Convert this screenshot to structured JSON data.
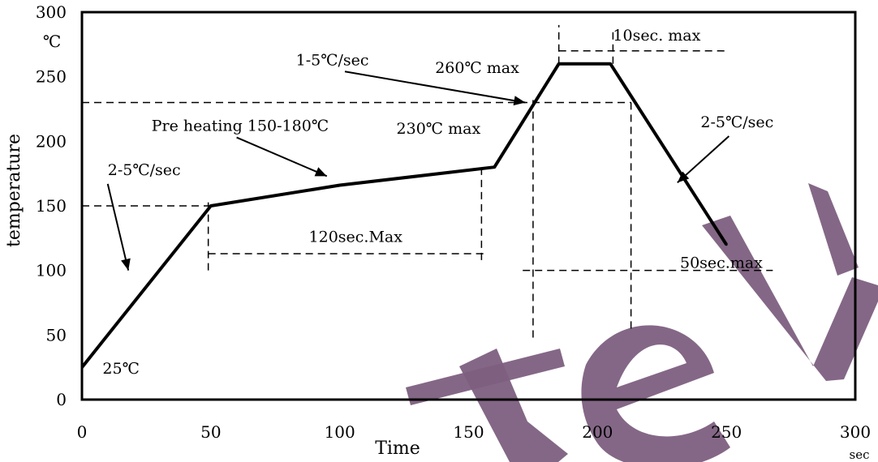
{
  "chart_data": {
    "type": "line",
    "xlabel": "Time",
    "ylabel": "temperature",
    "x_unit": "sec",
    "y_unit": "℃",
    "xlim": [
      0,
      300
    ],
    "ylim": [
      0,
      300
    ],
    "x_ticks": [
      "0",
      "50",
      "100",
      "150",
      "200",
      "250",
      "300"
    ],
    "y_ticks": [
      "0",
      "50",
      "100",
      "150",
      "200",
      "250",
      "300"
    ],
    "grid": false,
    "series": [
      {
        "x": [
          0,
          50,
          100,
          160,
          185,
          205,
          250
        ],
        "y": [
          25,
          150,
          166,
          180,
          260,
          260,
          120
        ]
      }
    ],
    "reference_lines": [
      {
        "orientation": "h",
        "y": 150,
        "x_from": 0,
        "x_to": 50
      },
      {
        "orientation": "h",
        "y": 230,
        "x_from": 0,
        "x_to": 213
      },
      {
        "orientation": "h",
        "y": 113,
        "x_from": 49,
        "x_to": 157
      },
      {
        "orientation": "h",
        "y": 270,
        "x_from": 185,
        "x_to": 250
      },
      {
        "orientation": "h",
        "y": 100,
        "x_from": 171,
        "x_to": 268
      },
      {
        "orientation": "v",
        "x": 49,
        "y_from": 100,
        "y_to": 156
      },
      {
        "orientation": "v",
        "x": 155,
        "y_from": 108,
        "y_to": 180
      },
      {
        "orientation": "v",
        "x": 175,
        "y_from": 48,
        "y_to": 232
      },
      {
        "orientation": "v",
        "x": 185,
        "y_from": 260,
        "y_to": 290
      },
      {
        "orientation": "v",
        "x": 206,
        "y_from": 260,
        "y_to": 288
      },
      {
        "orientation": "v",
        "x": 213,
        "y_from": 55,
        "y_to": 232
      }
    ],
    "annotations": [
      {
        "text": "25℃",
        "x": 8,
        "y": 20
      },
      {
        "text": "2-5℃/sec",
        "x": 10,
        "y": 174
      },
      {
        "text": "Pre heating  150-180℃",
        "x": 27,
        "y": 208
      },
      {
        "text": "120sec.Max",
        "x": 88,
        "y": 122
      },
      {
        "text": "230℃  max",
        "x": 122,
        "y": 206
      },
      {
        "text": "1-5℃/sec",
        "x": 83,
        "y": 259
      },
      {
        "text": "260℃  max",
        "x": 137,
        "y": 253
      },
      {
        "text": "10sec. max",
        "x": 206,
        "y": 278
      },
      {
        "text": "2-5℃/sec",
        "x": 240,
        "y": 211
      },
      {
        "text": "50sec.max",
        "x": 232,
        "y": 102
      }
    ],
    "arrows": [
      {
        "from": [
          10,
          167
        ],
        "to": [
          18,
          100
        ]
      },
      {
        "from": [
          60,
          203
        ],
        "to": [
          95,
          173
        ]
      },
      {
        "from": [
          102,
          254
        ],
        "to": [
          172,
          230
        ]
      },
      {
        "from": [
          251,
          204
        ],
        "to": [
          231,
          168
        ]
      }
    ]
  },
  "watermark": {
    "color": "#7d5f80",
    "shape_name": "watermark-letters"
  }
}
